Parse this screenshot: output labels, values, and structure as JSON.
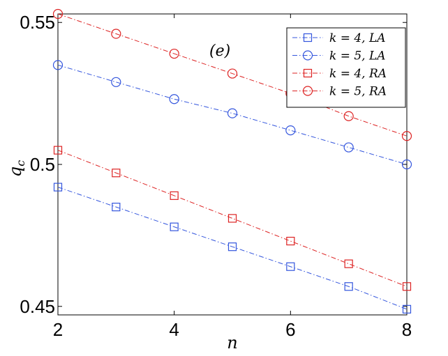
{
  "chart_data": {
    "type": "line",
    "xlabel": "n",
    "ylabel": "q_c",
    "ylabel_main": "q",
    "ylabel_sub": "c",
    "annotation": "(e)",
    "xlim": [
      2,
      8
    ],
    "ylim": [
      0.447,
      0.553
    ],
    "xticks": [
      2,
      4,
      6,
      8
    ],
    "xtick_labels": [
      "2",
      "4",
      "6",
      "8"
    ],
    "yticks": [
      0.45,
      0.5,
      0.55
    ],
    "ytick_labels": [
      "0.45",
      "0.5",
      "0.55"
    ],
    "grid": false,
    "legend_position": "top-right",
    "x": [
      2,
      3,
      4,
      5,
      6,
      7,
      8
    ],
    "series": [
      {
        "name": "k = 4, LA",
        "color": "#3355dd",
        "marker": "square",
        "values": [
          0.492,
          0.485,
          0.478,
          0.471,
          0.464,
          0.457,
          0.449
        ]
      },
      {
        "name": "k = 5, LA",
        "color": "#3355dd",
        "marker": "circle",
        "values": [
          0.535,
          0.529,
          0.523,
          0.518,
          0.512,
          0.506,
          0.5
        ]
      },
      {
        "name": "k = 4, RA",
        "color": "#dd2222",
        "marker": "square",
        "values": [
          0.505,
          0.497,
          0.489,
          0.481,
          0.473,
          0.465,
          0.457
        ]
      },
      {
        "name": "k = 5, RA",
        "color": "#dd2222",
        "marker": "circle",
        "values": [
          0.553,
          0.546,
          0.539,
          0.532,
          0.525,
          0.517,
          0.51
        ]
      }
    ]
  }
}
